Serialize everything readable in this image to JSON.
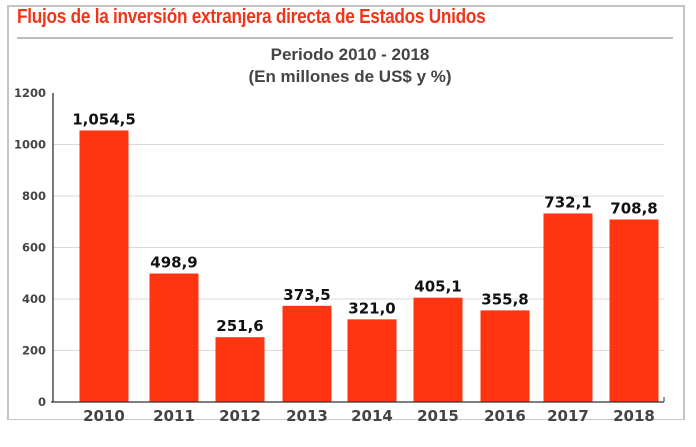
{
  "chart_data": {
    "type": "bar",
    "title": "Flujos de la inversión extranjera directa de Estados Unidos",
    "subtitle": [
      "Periodo 2010 - 2018",
      "(En millones de US$ y %)"
    ],
    "xlabel": "",
    "ylabel": "",
    "categories": [
      "2010",
      "2011",
      "2012",
      "2013",
      "2014",
      "2015",
      "2016",
      "2017",
      "2018"
    ],
    "values": [
      1054.5,
      498.9,
      251.6,
      373.5,
      321.0,
      405.1,
      355.8,
      732.1,
      708.8
    ],
    "value_labels": [
      "1,054,5",
      "498,9",
      "251,6",
      "373,5",
      "321,0",
      "405,1",
      "355,8",
      "732,1",
      "708,8"
    ],
    "ylim": [
      0,
      1200
    ],
    "yticks": [
      0,
      200,
      400,
      600,
      800,
      1000,
      1200
    ],
    "ytick_labels": [
      "0",
      "200",
      "400",
      "600",
      "800",
      "1000",
      "1200"
    ],
    "grid": true,
    "legend": "none",
    "colors": {
      "bar": "#ff3410",
      "title": "#f0351a",
      "subtitle": "#444444",
      "grid": "#d9d9d9",
      "axis": "#333333"
    }
  }
}
